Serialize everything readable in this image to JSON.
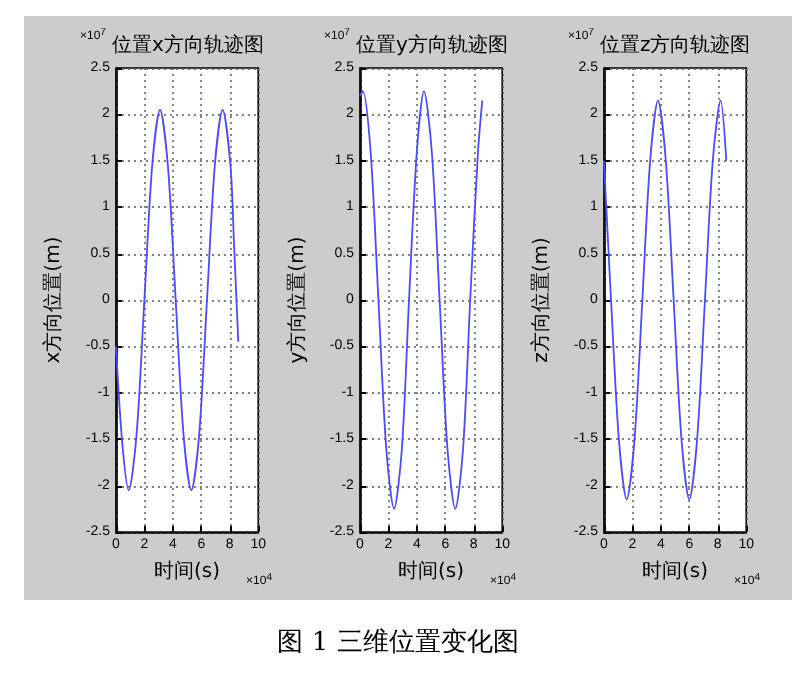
{
  "chart_data": [
    {
      "type": "line",
      "title": "位置x方向轨迹图",
      "xlabel": "时间(s)",
      "ylabel": "x方向位置(m)",
      "annotations": [
        "×10$^{7}$",
        "×10$^{4}$",
        "图 1  三维位置变化图"
      ],
      "x": [
        0,
        0.45,
        0.9,
        1.45,
        2.0,
        2.55,
        3.1,
        3.65,
        4.2,
        4.75,
        5.3,
        5.85,
        6.4,
        6.95,
        7.5,
        8.05,
        8.3,
        8.6
      ],
      "series": [
        {
          "color": "#4a4aff",
          "values": [
            -0.5,
            -1.55,
            -2.05,
            -1.45,
            0,
            1.45,
            2.05,
            1.45,
            0,
            -1.45,
            -2.05,
            -1.45,
            0,
            1.45,
            2.05,
            1.45,
            0.6,
            -0.45
          ]
        }
      ],
      "xlim": [
        0,
        10
      ],
      "xticks": [
        0,
        2,
        4,
        6,
        8,
        10
      ],
      "ylim": [
        -2.5,
        2.5
      ],
      "yticks": [
        -2.5,
        -2,
        -1.5,
        -1,
        -0.5,
        0,
        0.5,
        1,
        1.5,
        2,
        2.5
      ],
      "grid": true,
      "line_style": "solid",
      "marker": "none"
    },
    {
      "type": "line",
      "title": "位置y方向轨迹图",
      "xlabel": "时间(s)",
      "ylabel": "y方向位置(m)",
      "annotations": [
        "×10$^{7}$",
        "×10$^{4}$"
      ],
      "x": [
        0,
        0.2,
        0.75,
        1.3,
        1.85,
        2.4,
        2.95,
        3.45,
        4.0,
        4.5,
        5.05,
        5.6,
        6.15,
        6.7,
        7.25,
        7.75,
        8.3,
        8.6
      ],
      "series": [
        {
          "color": "#4a4aff",
          "values": [
            2.2,
            2.25,
            1.6,
            0,
            -1.6,
            -2.25,
            -1.6,
            0,
            1.6,
            2.25,
            1.6,
            0,
            -1.6,
            -2.25,
            -1.6,
            0,
            1.6,
            2.15
          ]
        }
      ],
      "xlim": [
        0,
        10
      ],
      "xticks": [
        0,
        2,
        4,
        6,
        8,
        10
      ],
      "ylim": [
        -2.5,
        2.5
      ],
      "yticks": [
        -2.5,
        -2,
        -1.5,
        -1,
        -0.5,
        0,
        0.5,
        1,
        1.5,
        2,
        2.5
      ],
      "grid": true,
      "line_style": "solid",
      "marker": "none"
    },
    {
      "type": "line",
      "title": "位置z方向轨迹图",
      "xlabel": "时间(s)",
      "ylabel": "z方向位置(m)",
      "annotations": [
        "×10$^{7}$",
        "×10$^{4}$"
      ],
      "x": [
        0,
        0.5,
        1.05,
        1.6,
        2.15,
        2.7,
        3.25,
        3.8,
        4.35,
        4.9,
        5.45,
        6.0,
        6.55,
        7.1,
        7.65,
        8.2,
        8.6
      ],
      "series": [
        {
          "color": "#4a4aff",
          "values": [
            1.5,
            0,
            -1.5,
            -2.15,
            -1.5,
            0,
            1.5,
            2.15,
            1.5,
            0,
            -1.5,
            -2.15,
            -1.5,
            0,
            1.5,
            2.15,
            1.5
          ]
        }
      ],
      "xlim": [
        0,
        10
      ],
      "xticks": [
        0,
        2,
        4,
        6,
        8,
        10
      ],
      "ylim": [
        -2.5,
        2.5
      ],
      "yticks": [
        -2.5,
        -2,
        -1.5,
        -1,
        -0.5,
        0,
        0.5,
        1,
        1.5,
        2,
        2.5
      ],
      "grid": true,
      "line_style": "solid",
      "marker": "none"
    }
  ]
}
